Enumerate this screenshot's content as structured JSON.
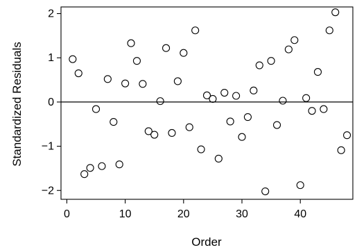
{
  "chart_data": {
    "type": "scatter",
    "xlabel": "Order",
    "ylabel": "Standardized Residuals",
    "xlim": [
      -1,
      49
    ],
    "ylim": [
      -2.2,
      2.15
    ],
    "xticks": [
      0,
      10,
      20,
      30,
      40
    ],
    "yticks": [
      -2,
      -1,
      0,
      1,
      2
    ],
    "reference_line_y": 0,
    "grid": false,
    "marker": "open-circle",
    "series": [
      {
        "x": [
          1,
          2,
          3,
          4,
          5,
          6,
          7,
          8,
          9,
          10,
          11,
          12,
          13,
          14,
          15,
          16,
          17,
          18,
          19,
          20,
          21,
          22,
          23,
          24,
          25,
          26,
          27,
          28,
          29,
          30,
          31,
          32,
          33,
          34,
          35,
          36,
          37,
          38,
          39,
          40,
          41,
          42,
          43,
          44,
          45,
          46,
          47,
          48
        ],
        "y": [
          0.97,
          0.65,
          -1.63,
          -1.49,
          -0.16,
          -1.45,
          0.52,
          -0.45,
          -1.41,
          0.42,
          1.33,
          0.93,
          0.41,
          -0.66,
          -0.74,
          0.02,
          1.22,
          -0.7,
          0.47,
          1.11,
          -0.57,
          1.62,
          -1.07,
          0.15,
          0.07,
          -1.28,
          0.21,
          -0.44,
          0.14,
          -0.79,
          -0.34,
          0.26,
          0.83,
          -2.02,
          0.93,
          -0.52,
          0.03,
          1.19,
          1.4,
          -1.88,
          0.09,
          -0.2,
          0.68,
          -0.16,
          1.62,
          2.03,
          -1.09,
          -0.75
        ]
      }
    ]
  }
}
